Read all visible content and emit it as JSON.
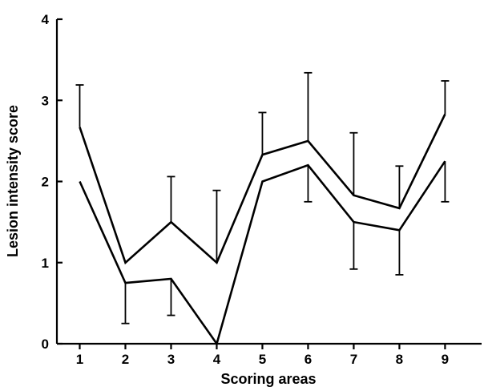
{
  "chart_data": {
    "type": "line",
    "title": "",
    "xlabel": "Scoring areas",
    "ylabel": "Lesion intensity score",
    "x": [
      1,
      2,
      3,
      4,
      5,
      6,
      7,
      8,
      9
    ],
    "xlim": [
      0.5,
      9.8
    ],
    "ylim": [
      0,
      4
    ],
    "yticks": [
      0,
      1,
      2,
      3,
      4
    ],
    "grid": false,
    "legend": "none",
    "series": [
      {
        "values": [
          2.67,
          1.0,
          1.5,
          1.0,
          2.33,
          2.5,
          1.83,
          1.67,
          2.83
        ],
        "error_direction": "up",
        "errors": [
          0.52,
          0.0,
          0.56,
          0.89,
          0.52,
          0.84,
          0.77,
          0.52,
          0.41
        ]
      },
      {
        "values": [
          2.0,
          0.75,
          0.8,
          0.0,
          2.0,
          2.2,
          1.5,
          1.4,
          2.25
        ],
        "error_direction": "down",
        "errors": [
          0.0,
          0.5,
          0.45,
          0.0,
          0.0,
          0.45,
          0.58,
          0.55,
          0.5
        ]
      }
    ]
  }
}
